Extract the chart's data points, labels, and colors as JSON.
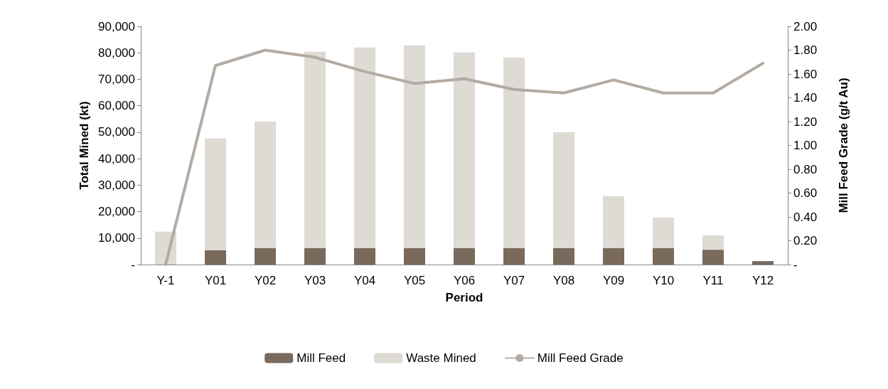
{
  "chart_data": {
    "type": "bar",
    "stacked": true,
    "xlabel": "Period",
    "ylabel": "Total Mined (kt)",
    "y2label": "Mill Feed Grade (g/t Au)",
    "categories": [
      "Y-1",
      "Y01",
      "Y02",
      "Y03",
      "Y04",
      "Y05",
      "Y06",
      "Y07",
      "Y08",
      "Y09",
      "Y10",
      "Y11",
      "Y12"
    ],
    "series": [
      {
        "name": "Mill Feed",
        "color": "#7a6a5c",
        "values": [
          0,
          5400,
          6200,
          6200,
          6200,
          6200,
          6200,
          6200,
          6200,
          6200,
          6200,
          5600,
          1300
        ]
      },
      {
        "name": "Waste Mined",
        "color": "#dedad4",
        "values": [
          12400,
          42200,
          47800,
          74200,
          75800,
          76600,
          73900,
          72000,
          43800,
          19600,
          11500,
          5400,
          0
        ]
      },
      {
        "name": "Mill Feed Grade",
        "type": "line",
        "axis": "y2",
        "color": "#b3aba3",
        "values": [
          0,
          1.67,
          1.8,
          1.74,
          1.62,
          1.52,
          1.56,
          1.47,
          1.44,
          1.55,
          1.44,
          1.44,
          1.69
        ]
      }
    ],
    "ylim": [
      0,
      90000
    ],
    "yticks": [
      {
        "value": 0,
        "label": "-"
      },
      {
        "value": 10000,
        "label": "10,000"
      },
      {
        "value": 20000,
        "label": "20,000"
      },
      {
        "value": 30000,
        "label": "30,000"
      },
      {
        "value": 40000,
        "label": "40,000"
      },
      {
        "value": 50000,
        "label": "50,000"
      },
      {
        "value": 60000,
        "label": "60,000"
      },
      {
        "value": 70000,
        "label": "70,000"
      },
      {
        "value": 80000,
        "label": "80,000"
      },
      {
        "value": 90000,
        "label": "90,000"
      }
    ],
    "y2lim": [
      0,
      2
    ],
    "y2ticks": [
      {
        "value": 0,
        "label": "-"
      },
      {
        "value": 0.2,
        "label": "0.20"
      },
      {
        "value": 0.4,
        "label": "0.40"
      },
      {
        "value": 0.6,
        "label": "0.60"
      },
      {
        "value": 0.8,
        "label": "0.80"
      },
      {
        "value": 1.0,
        "label": "1.00"
      },
      {
        "value": 1.2,
        "label": "1.20"
      },
      {
        "value": 1.4,
        "label": "1.40"
      },
      {
        "value": 1.6,
        "label": "1.60"
      },
      {
        "value": 1.8,
        "label": "1.80"
      },
      {
        "value": 2.0,
        "label": "2.00"
      }
    ],
    "grid": false,
    "legend": "bottom",
    "marker": "none",
    "line_style": "solid"
  }
}
